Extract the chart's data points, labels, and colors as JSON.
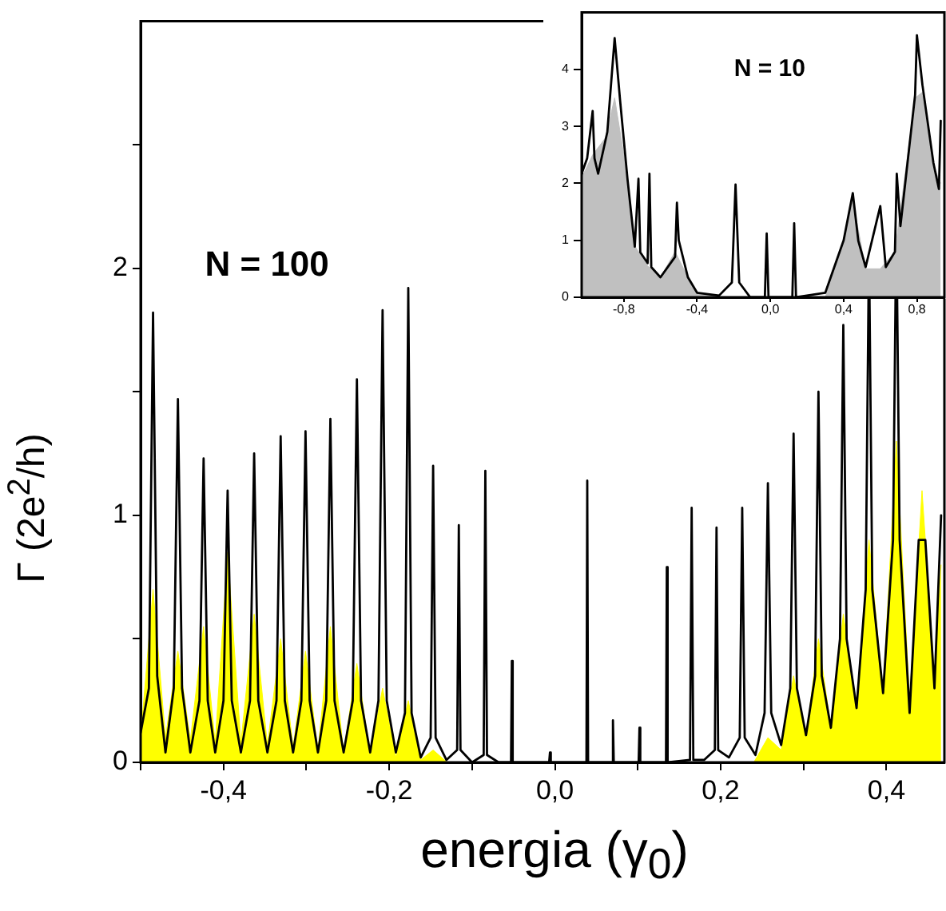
{
  "chart_data": [
    {
      "type": "line",
      "xlabel": "energia (γ$_{0}$)",
      "ylabel": "Γ (2e$^{2}$/h)",
      "annotations": [
        "N = 100"
      ],
      "xlim": [
        -0.5,
        0.47
      ],
      "ylim": [
        0,
        3
      ],
      "xticks": [
        {
          "value": -0.5,
          "label": null
        },
        {
          "value": -0.4,
          "label": "-0,4"
        },
        {
          "value": -0.3,
          "label": null
        },
        {
          "value": -0.2,
          "label": "-0,2"
        },
        {
          "value": -0.1,
          "label": null
        },
        {
          "value": 0,
          "label": "0,0"
        },
        {
          "value": 0.1,
          "label": null
        },
        {
          "value": 0.2,
          "label": "0,2"
        },
        {
          "value": 0.3,
          "label": null
        },
        {
          "value": 0.4,
          "label": "0,4"
        }
      ],
      "yticks": [
        0,
        {
          "value": 0.5,
          "label": null
        },
        1,
        {
          "value": 1.5,
          "label": null
        },
        2,
        {
          "value": 2.5,
          "label": null
        }
      ],
      "series": [
        {
          "type": "line",
          "color": "#000000",
          "x": [
            -0.5,
            -0.49,
            -0.485,
            -0.48,
            -0.47,
            -0.46,
            -0.455,
            -0.45,
            -0.44,
            -0.429,
            -0.424,
            -0.419,
            -0.41,
            -0.4,
            -0.395,
            -0.39,
            -0.379,
            -0.368,
            -0.363,
            -0.358,
            -0.347,
            -0.336,
            -0.331,
            -0.326,
            -0.316,
            -0.306,
            -0.301,
            -0.296,
            -0.286,
            -0.276,
            -0.271,
            -0.266,
            -0.255,
            -0.244,
            -0.239,
            -0.234,
            -0.223,
            -0.213,
            -0.208,
            -0.203,
            -0.192,
            -0.181,
            -0.177,
            -0.173,
            -0.162,
            -0.15,
            -0.147,
            -0.144,
            -0.131,
            -0.118,
            -0.116,
            -0.114,
            -0.1,
            -0.086,
            -0.084,
            -0.082,
            -0.068,
            -0.053,
            -0.052,
            -0.051,
            -0.007,
            -0.006,
            -0.005,
            0.038,
            0.039,
            0.04,
            0.069,
            0.07,
            0.071,
            0.101,
            0.102,
            0.103,
            0.134,
            0.135,
            0.136,
            0.163,
            0.165,
            0.167,
            0.18,
            0.193,
            0.195,
            0.197,
            0.21,
            0.223,
            0.226,
            0.229,
            0.242,
            0.253,
            0.257,
            0.261,
            0.273,
            0.284,
            0.288,
            0.292,
            0.303,
            0.314,
            0.318,
            0.322,
            0.333,
            0.344,
            0.348,
            0.352,
            0.364,
            0.375,
            0.379,
            0.383,
            0.396,
            0.408,
            0.412,
            0.416,
            0.428,
            0.439,
            0.443,
            0.447,
            0.458,
            0.466
          ],
          "values": [
            0.12,
            0.3,
            1.82,
            0.35,
            0.04,
            0.3,
            1.47,
            0.3,
            0.04,
            0.25,
            1.23,
            0.25,
            0.04,
            0.25,
            1.1,
            0.25,
            0.04,
            0.25,
            1.25,
            0.25,
            0.04,
            0.25,
            1.32,
            0.25,
            0.04,
            0.25,
            1.34,
            0.25,
            0.04,
            0.25,
            1.39,
            0.25,
            0.04,
            0.25,
            1.55,
            0.25,
            0.04,
            0.25,
            1.83,
            0.25,
            0.04,
            0.2,
            1.92,
            0.2,
            0.02,
            0.1,
            1.2,
            0.1,
            0.01,
            0.05,
            0.96,
            0.05,
            0,
            0.03,
            1.18,
            0.03,
            0,
            0,
            0.41,
            0,
            0,
            0.04,
            0,
            0,
            1.14,
            0,
            0,
            0.17,
            0,
            0,
            0.14,
            0,
            0,
            0.79,
            0,
            0.01,
            1.03,
            0.01,
            0.01,
            0.05,
            0.95,
            0.05,
            0.02,
            0.1,
            1.03,
            0.1,
            0.03,
            0.2,
            1.13,
            0.2,
            0.07,
            0.3,
            1.33,
            0.3,
            0.11,
            0.35,
            1.5,
            0.35,
            0.14,
            0.5,
            1.77,
            0.5,
            0.22,
            0.7,
            2.1,
            0.7,
            0.28,
            0.9,
            2.2,
            0.9,
            0.2,
            0.9,
            null,
            0.9,
            0.3,
            1.0
          ]
        },
        {
          "type": "area",
          "color": "#ffff00",
          "x": [
            -0.5,
            -0.485,
            -0.47,
            -0.455,
            -0.44,
            -0.424,
            -0.41,
            -0.395,
            -0.379,
            -0.363,
            -0.347,
            -0.331,
            -0.316,
            -0.301,
            -0.286,
            -0.271,
            -0.255,
            -0.239,
            -0.223,
            -0.208,
            -0.192,
            -0.177,
            -0.162,
            -0.147,
            -0.13,
            0.24,
            0.257,
            0.273,
            0.288,
            0.303,
            0.318,
            0.333,
            0.348,
            0.364,
            0.379,
            0.396,
            0.412,
            0.428,
            0.443,
            0.458,
            0.466
          ],
          "values": [
            0.1,
            0.7,
            0.1,
            0.45,
            0.09,
            0.55,
            0.08,
            0.85,
            0.08,
            0.6,
            0.07,
            0.5,
            0.06,
            0.45,
            0.05,
            0.55,
            0.04,
            0.4,
            0.03,
            0.3,
            0.02,
            0.25,
            0.01,
            0.05,
            0,
            0,
            0.1,
            0.05,
            0.35,
            0.1,
            0.5,
            0.14,
            0.6,
            0.22,
            0.9,
            0.28,
            1.3,
            0.25,
            1.1,
            0.35,
            0.8
          ]
        }
      ]
    },
    {
      "type": "line",
      "annotations": [
        "N = 10"
      ],
      "xlim": [
        -1.03,
        0.95
      ],
      "ylim": [
        0,
        5
      ],
      "xticks": [
        {
          "value": -0.8,
          "label": "-0,8"
        },
        {
          "value": -0.4,
          "label": "-0,4"
        },
        {
          "value": 0,
          "label": "0,0"
        },
        {
          "value": 0.4,
          "label": "0,4"
        },
        {
          "value": 0.8,
          "label": "0,8"
        }
      ],
      "yticks": [
        0,
        1,
        2,
        3,
        4
      ],
      "series": [
        {
          "type": "line",
          "color": "#000000",
          "x": [
            -1.03,
            -1.0,
            -0.97,
            -0.96,
            -0.94,
            -0.89,
            -0.85,
            -0.82,
            -0.78,
            -0.74,
            -0.72,
            -0.71,
            -0.67,
            -0.66,
            -0.65,
            -0.6,
            -0.52,
            -0.51,
            -0.5,
            -0.45,
            -0.4,
            -0.28,
            -0.21,
            -0.19,
            -0.17,
            -0.11,
            -0.03,
            -0.02,
            -0.01,
            0.12,
            0.13,
            0.14,
            0.3,
            0.4,
            0.45,
            0.48,
            0.52,
            0.6,
            0.63,
            0.68,
            0.69,
            0.71,
            0.79,
            0.8,
            0.83,
            0.89,
            0.92,
            0.93
          ],
          "values": [
            2.17,
            2.44,
            3.27,
            2.44,
            2.17,
            2.9,
            4.55,
            3.45,
            2.08,
            0.89,
            2.08,
            0.79,
            0.6,
            2.17,
            0.53,
            0.35,
            0.71,
            1.66,
            1.0,
            0.35,
            0.08,
            0.03,
            0.26,
            1.98,
            0.26,
            0,
            0,
            1.12,
            0,
            0,
            1.3,
            0,
            0.08,
            1.0,
            1.83,
            0.99,
            0.53,
            1.6,
            0.53,
            0.8,
            2.17,
            1.25,
            3.55,
            4.6,
            3.73,
            2.36,
            1.9,
            3.1
          ]
        },
        {
          "type": "area",
          "color": "#c0c0c0",
          "x": [
            -1.03,
            -0.97,
            -0.9,
            -0.85,
            -0.8,
            -0.74,
            -0.67,
            -0.6,
            -0.52,
            -0.45,
            -0.4,
            -0.28,
            0.3,
            0.4,
            0.45,
            0.52,
            0.6,
            0.68,
            0.79,
            0.83,
            0.89,
            0.93
          ],
          "values": [
            2.1,
            2.5,
            2.8,
            3.5,
            2.5,
            0.9,
            0.55,
            0.35,
            0.8,
            0.35,
            0.08,
            0,
            0,
            1.0,
            1.7,
            0.5,
            0.5,
            0.8,
            3.5,
            3.6,
            2.3,
            2.0
          ]
        }
      ]
    }
  ]
}
